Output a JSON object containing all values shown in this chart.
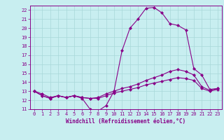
{
  "xlabel": "Windchill (Refroidissement éolien,°C)",
  "bg_color": "#c8eef0",
  "line_color": "#880088",
  "grid_color": "#a8d8d8",
  "xlim": [
    -0.5,
    23.5
  ],
  "ylim": [
    11,
    22.5
  ],
  "xticks": [
    0,
    1,
    2,
    3,
    4,
    5,
    6,
    7,
    8,
    9,
    10,
    11,
    12,
    13,
    14,
    15,
    16,
    17,
    18,
    19,
    20,
    21,
    22,
    23
  ],
  "yticks": [
    11,
    12,
    13,
    14,
    15,
    16,
    17,
    18,
    19,
    20,
    21,
    22
  ],
  "line1_x": [
    0,
    1,
    2,
    3,
    4,
    5,
    6,
    7,
    8,
    9,
    10,
    11,
    12,
    13,
    14,
    15,
    16,
    17,
    18,
    19,
    20,
    21,
    22,
    23
  ],
  "line1_y": [
    13.0,
    12.5,
    12.2,
    12.5,
    12.3,
    12.5,
    12.2,
    11.0,
    10.8,
    11.4,
    13.0,
    17.5,
    20.0,
    21.0,
    22.2,
    22.3,
    21.7,
    20.5,
    20.3,
    19.8,
    15.5,
    14.8,
    13.2,
    13.3
  ],
  "line2_x": [
    0,
    1,
    2,
    3,
    4,
    5,
    6,
    7,
    8,
    9,
    10,
    11,
    12,
    13,
    14,
    15,
    16,
    17,
    18,
    19,
    20,
    21,
    22,
    23
  ],
  "line2_y": [
    13.0,
    12.5,
    12.2,
    12.5,
    12.3,
    12.5,
    12.3,
    12.2,
    12.3,
    12.7,
    13.0,
    13.3,
    13.5,
    13.8,
    14.2,
    14.5,
    14.8,
    15.2,
    15.4,
    15.2,
    14.8,
    13.5,
    13.1,
    13.3
  ],
  "line3_x": [
    0,
    1,
    2,
    3,
    4,
    5,
    6,
    7,
    8,
    9,
    10,
    11,
    12,
    13,
    14,
    15,
    16,
    17,
    18,
    19,
    20,
    21,
    22,
    23
  ],
  "line3_y": [
    13.0,
    12.7,
    12.3,
    12.5,
    12.3,
    12.5,
    12.3,
    12.2,
    12.2,
    12.5,
    12.8,
    13.0,
    13.2,
    13.4,
    13.7,
    13.9,
    14.1,
    14.3,
    14.5,
    14.4,
    14.2,
    13.3,
    13.0,
    13.2
  ],
  "marker": "D",
  "markersize": 2.0,
  "linewidth": 0.8,
  "tick_fontsize": 5.0,
  "xlabel_fontsize": 5.5
}
